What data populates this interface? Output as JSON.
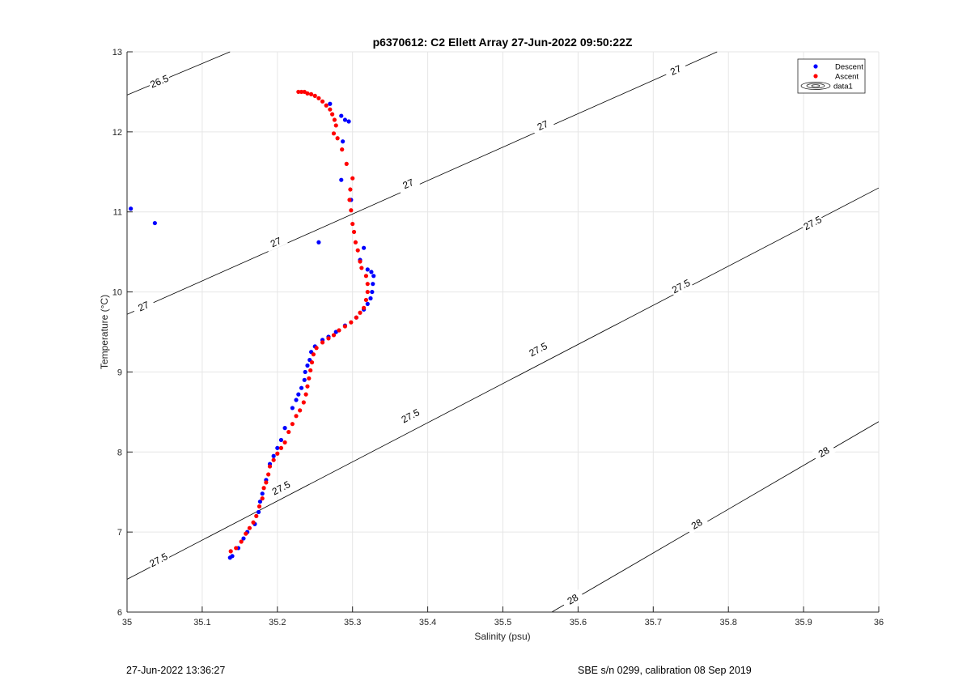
{
  "chart_data": {
    "type": "scatter",
    "title": "p6370612: C2 Ellett Array 27-Jun-2022 09:50:22Z",
    "xlabel": "Salinity (psu)",
    "ylabel": "Temperature (°C)",
    "xlim": [
      35,
      36
    ],
    "ylim": [
      6,
      13
    ],
    "xticks": [
      35,
      35.1,
      35.2,
      35.3,
      35.4,
      35.5,
      35.6,
      35.7,
      35.8,
      35.9,
      36
    ],
    "xtick_labels": [
      "35",
      "35.1",
      "35.2",
      "35.3",
      "35.4",
      "35.5",
      "35.6",
      "35.7",
      "35.8",
      "35.9",
      "36"
    ],
    "yticks": [
      6,
      7,
      8,
      9,
      10,
      11,
      12,
      13
    ],
    "ytick_labels": [
      "6",
      "7",
      "8",
      "9",
      "10",
      "11",
      "12",
      "13"
    ],
    "grid": true,
    "legend_position": "top-right",
    "legend": [
      {
        "label": "Descent",
        "kind": "marker",
        "color": "#0000ff"
      },
      {
        "label": "Ascent",
        "kind": "marker",
        "color": "#ff0000"
      },
      {
        "label": "data1",
        "kind": "contour",
        "color": "#000000"
      }
    ],
    "series": [
      {
        "name": "Descent",
        "color": "#0000ff",
        "points": [
          [
            35.005,
            11.04
          ],
          [
            35.037,
            10.86
          ],
          [
            35.255,
            10.62
          ],
          [
            35.27,
            12.35
          ],
          [
            35.285,
            12.2
          ],
          [
            35.29,
            12.15
          ],
          [
            35.295,
            12.13
          ],
          [
            35.287,
            11.88
          ],
          [
            35.285,
            11.4
          ],
          [
            35.298,
            11.15
          ],
          [
            35.315,
            10.55
          ],
          [
            35.31,
            10.4
          ],
          [
            35.32,
            10.28
          ],
          [
            35.325,
            10.25
          ],
          [
            35.328,
            10.2
          ],
          [
            35.327,
            10.1
          ],
          [
            35.326,
            10.0
          ],
          [
            35.324,
            9.92
          ],
          [
            35.32,
            9.85
          ],
          [
            35.315,
            9.78
          ],
          [
            35.305,
            9.68
          ],
          [
            35.29,
            9.58
          ],
          [
            35.278,
            9.5
          ],
          [
            35.268,
            9.44
          ],
          [
            35.26,
            9.4
          ],
          [
            35.25,
            9.32
          ],
          [
            35.245,
            9.25
          ],
          [
            35.243,
            9.15
          ],
          [
            35.24,
            9.08
          ],
          [
            35.237,
            9.0
          ],
          [
            35.236,
            8.9
          ],
          [
            35.232,
            8.8
          ],
          [
            35.228,
            8.72
          ],
          [
            35.225,
            8.65
          ],
          [
            35.22,
            8.55
          ],
          [
            35.21,
            8.3
          ],
          [
            35.205,
            8.15
          ],
          [
            35.2,
            8.05
          ],
          [
            35.195,
            7.95
          ],
          [
            35.19,
            7.85
          ],
          [
            35.185,
            7.65
          ],
          [
            35.18,
            7.48
          ],
          [
            35.177,
            7.38
          ],
          [
            35.175,
            7.25
          ],
          [
            35.17,
            7.1
          ],
          [
            35.16,
            7.0
          ],
          [
            35.155,
            6.92
          ],
          [
            35.148,
            6.8
          ],
          [
            35.14,
            6.7
          ],
          [
            35.137,
            6.68
          ]
        ]
      },
      {
        "name": "Ascent",
        "color": "#ff0000",
        "points": [
          [
            35.228,
            12.5
          ],
          [
            35.232,
            12.5
          ],
          [
            35.236,
            12.5
          ],
          [
            35.24,
            12.48
          ],
          [
            35.245,
            12.47
          ],
          [
            35.25,
            12.45
          ],
          [
            35.255,
            12.42
          ],
          [
            35.26,
            12.38
          ],
          [
            35.265,
            12.33
          ],
          [
            35.27,
            12.28
          ],
          [
            35.273,
            12.22
          ],
          [
            35.276,
            12.15
          ],
          [
            35.278,
            12.08
          ],
          [
            35.275,
            11.98
          ],
          [
            35.28,
            11.92
          ],
          [
            35.286,
            11.78
          ],
          [
            35.292,
            11.6
          ],
          [
            35.3,
            11.42
          ],
          [
            35.297,
            11.28
          ],
          [
            35.296,
            11.15
          ],
          [
            35.298,
            11.02
          ],
          [
            35.3,
            10.85
          ],
          [
            35.302,
            10.75
          ],
          [
            35.304,
            10.62
          ],
          [
            35.307,
            10.52
          ],
          [
            35.31,
            10.38
          ],
          [
            35.312,
            10.3
          ],
          [
            35.318,
            10.2
          ],
          [
            35.32,
            10.1
          ],
          [
            35.32,
            10.0
          ],
          [
            35.318,
            9.9
          ],
          [
            35.315,
            9.8
          ],
          [
            35.31,
            9.74
          ],
          [
            35.305,
            9.68
          ],
          [
            35.298,
            9.62
          ],
          [
            35.29,
            9.57
          ],
          [
            35.282,
            9.52
          ],
          [
            35.275,
            9.46
          ],
          [
            35.268,
            9.42
          ],
          [
            35.26,
            9.37
          ],
          [
            35.252,
            9.3
          ],
          [
            35.248,
            9.22
          ],
          [
            35.246,
            9.12
          ],
          [
            35.244,
            9.02
          ],
          [
            35.242,
            8.92
          ],
          [
            35.24,
            8.82
          ],
          [
            35.238,
            8.72
          ],
          [
            35.235,
            8.62
          ],
          [
            35.23,
            8.52
          ],
          [
            35.225,
            8.45
          ],
          [
            35.22,
            8.35
          ],
          [
            35.215,
            8.25
          ],
          [
            35.21,
            8.12
          ],
          [
            35.205,
            8.05
          ],
          [
            35.2,
            7.98
          ],
          [
            35.195,
            7.9
          ],
          [
            35.19,
            7.82
          ],
          [
            35.188,
            7.72
          ],
          [
            35.185,
            7.62
          ],
          [
            35.182,
            7.55
          ],
          [
            35.18,
            7.42
          ],
          [
            35.176,
            7.32
          ],
          [
            35.172,
            7.2
          ],
          [
            35.168,
            7.12
          ],
          [
            35.163,
            7.05
          ],
          [
            35.158,
            6.98
          ],
          [
            35.152,
            6.88
          ],
          [
            35.145,
            6.8
          ],
          [
            35.138,
            6.76
          ]
        ]
      }
    ],
    "contours": [
      {
        "level": 26.5,
        "line": [
          [
            35.0,
            12.46
          ],
          [
            35.137,
            13.0
          ]
        ],
        "labels": [
          {
            "text": "26.5",
            "at": [
              35.043,
              12.63
            ]
          }
        ]
      },
      {
        "level": 27,
        "line": [
          [
            35.0,
            9.72
          ],
          [
            35.785,
            13.0
          ]
        ],
        "labels": [
          {
            "text": "27",
            "at": [
              35.022,
              9.82
            ]
          },
          {
            "text": "27",
            "at": [
              35.198,
              10.62
            ]
          },
          {
            "text": "27",
            "at": [
              35.374,
              11.35
            ]
          },
          {
            "text": "27",
            "at": [
              35.553,
              12.08
            ]
          },
          {
            "text": "27",
            "at": [
              35.73,
              12.77
            ]
          }
        ]
      },
      {
        "level": 27.5,
        "line": [
          [
            35.0,
            6.41
          ],
          [
            36.0,
            11.3
          ]
        ],
        "labels": [
          {
            "text": "27.5",
            "at": [
              35.042,
              6.65
            ]
          },
          {
            "text": "27.5",
            "at": [
              35.205,
              7.55
            ]
          },
          {
            "text": "27.5",
            "at": [
              35.377,
              8.45
            ]
          },
          {
            "text": "27.5",
            "at": [
              35.547,
              9.28
            ]
          },
          {
            "text": "27.5",
            "at": [
              35.737,
              10.07
            ]
          },
          {
            "text": "27.5",
            "at": [
              35.912,
              10.86
            ]
          }
        ]
      },
      {
        "level": 28,
        "line": [
          [
            35.565,
            6.0
          ],
          [
            36.0,
            8.38
          ]
        ],
        "labels": [
          {
            "text": "28",
            "at": [
              35.593,
              6.16
            ]
          },
          {
            "text": "28",
            "at": [
              35.758,
              7.1
            ]
          },
          {
            "text": "28",
            "at": [
              35.927,
              8.0
            ]
          }
        ]
      }
    ]
  },
  "footer": {
    "left": "27-Jun-2022 13:36:27",
    "right": "SBE s/n 0299, calibration 08 Sep 2019"
  }
}
